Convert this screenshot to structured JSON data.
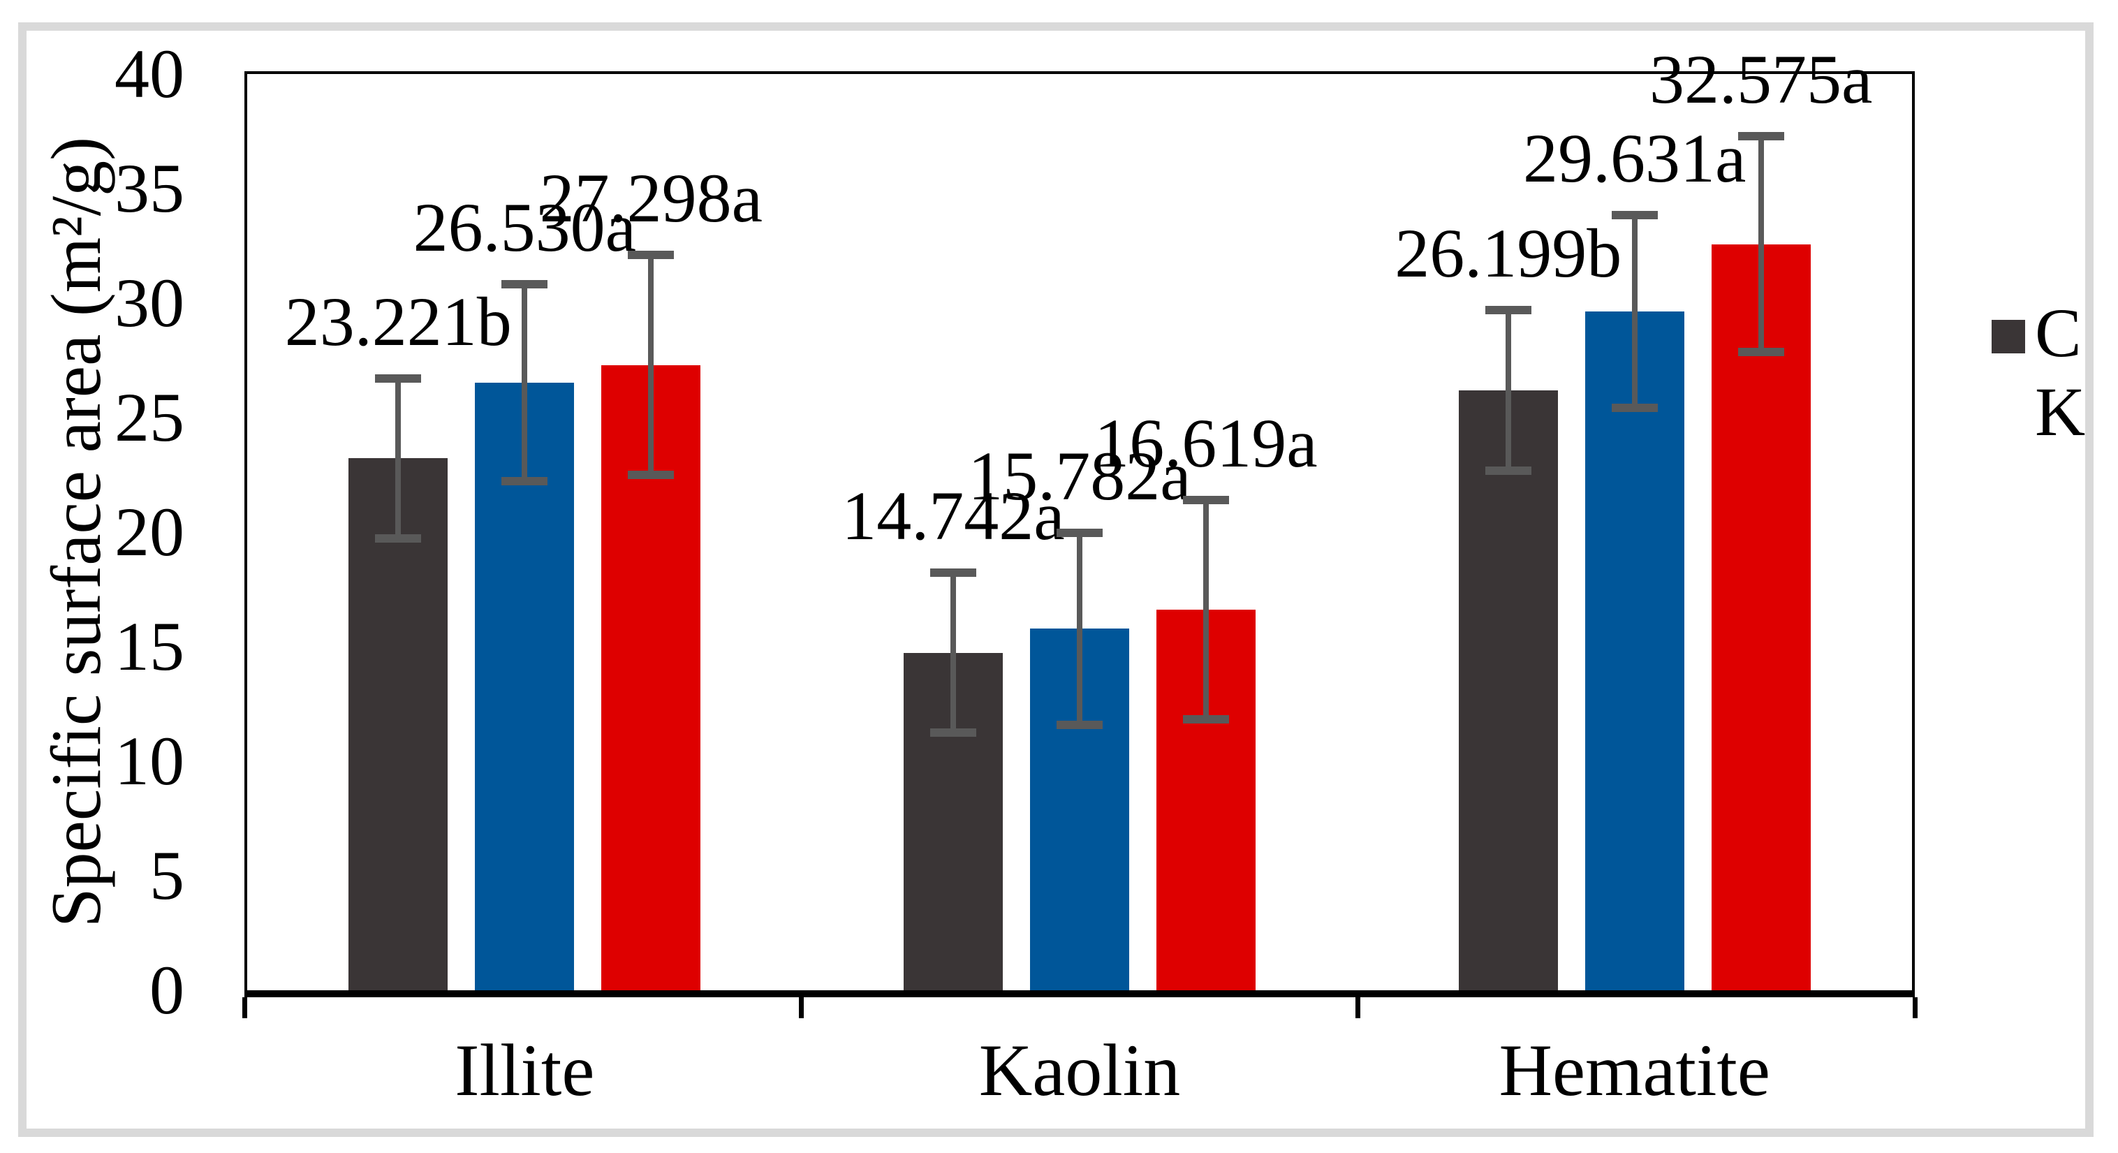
{
  "figure": {
    "background_color": "#ffffff",
    "frame_color": "#d9d9d9",
    "axis_color": "#000000"
  },
  "chart_data": {
    "type": "bar",
    "title": "",
    "categories": [
      "Illite",
      "Kaolin",
      "Hematite"
    ],
    "series": [
      {
        "name": "C",
        "color": "#3a3536",
        "values": [
          23.221,
          14.742,
          26.199
        ],
        "errors": [
          3.5,
          3.5,
          3.5
        ],
        "point_labels": [
          "23.221b",
          "14.742a",
          "26.199b"
        ]
      },
      {
        "name": "",
        "color": "#005699",
        "values": [
          26.53,
          15.782,
          29.631
        ],
        "errors": [
          4.3,
          4.2,
          4.2
        ],
        "point_labels": [
          "26.530a",
          "15.782a",
          "29.631a"
        ]
      },
      {
        "name": "",
        "color": "#de0000",
        "values": [
          27.298,
          16.619,
          32.575
        ],
        "errors": [
          4.8,
          4.8,
          4.7
        ],
        "point_labels": [
          "27.298a",
          "16.619a",
          "32.575a"
        ]
      }
    ],
    "xlabel": "",
    "ylabel": "Specific surface area (m²/g)",
    "ylim": [
      0,
      40
    ],
    "yticks": [
      0,
      5,
      10,
      15,
      20,
      25,
      30,
      35,
      40
    ],
    "grid": false,
    "legend_position": "right",
    "error_bar_color": "#595959"
  },
  "legend": {
    "marker_color": "#3a3536",
    "text_lines": [
      "C",
      "K"
    ]
  }
}
